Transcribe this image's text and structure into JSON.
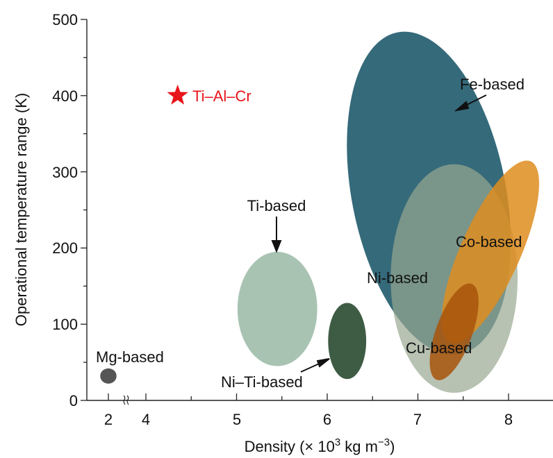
{
  "chart_data": {
    "type": "scatter",
    "xlabel": "Density (× 10",
    "xlabel_sup1": "3",
    "xlabel_mid": " kg m",
    "xlabel_sup2": "−3",
    "xlabel_end": ")",
    "ylabel": "Operational temperature range (K)",
    "xlim": [
      1.75,
      8.5
    ],
    "ylim": [
      0,
      500
    ],
    "x_axis_break": "between 2 and 4",
    "x_ticks": [
      "2",
      "4",
      "5",
      "6",
      "7",
      "8"
    ],
    "y_ticks": [
      "0",
      "100",
      "200",
      "300",
      "400",
      "500"
    ],
    "grid": false,
    "highlight_point": {
      "name": "Ti–Al–Cr",
      "x": 4.35,
      "y": 400,
      "marker": "star",
      "color": "#e8141b"
    },
    "regions": [
      {
        "name": "Fe-based",
        "label": "Fe-based",
        "cx": 7.12,
        "cy": 272,
        "rx_density": 0.85,
        "ry_temp": 215,
        "rotation_deg": -11,
        "color": "#1f5a6b",
        "opacity": 0.9
      },
      {
        "name": "Ni-based",
        "label": "Ni-based",
        "cx": 7.4,
        "cy": 160,
        "rx_density": 0.7,
        "ry_temp": 150,
        "rotation_deg": 0,
        "color": "#98a891",
        "opacity": 0.7
      },
      {
        "name": "Co-based",
        "label": "Co-based",
        "cx": 7.8,
        "cy": 195,
        "rx_density": 0.33,
        "ry_temp": 130,
        "rotation_deg": 24,
        "color": "#de8d1e",
        "opacity": 0.85
      },
      {
        "name": "Cu-based",
        "label": "Cu-based",
        "cx": 7.4,
        "cy": 90,
        "rx_density": 0.2,
        "ry_temp": 67,
        "rotation_deg": 20,
        "color": "#a8530a",
        "opacity": 0.85
      },
      {
        "name": "Ti-based",
        "label": "Ti-based",
        "cx": 5.45,
        "cy": 120,
        "rx_density": 0.44,
        "ry_temp": 75,
        "rotation_deg": 0,
        "color": "#a8c3b2",
        "opacity": 1
      },
      {
        "name": "Ni–Ti-based",
        "label": "Ni–Ti-based",
        "cx": 6.22,
        "cy": 78,
        "rx_density": 0.21,
        "ry_temp": 50,
        "rotation_deg": 0,
        "color": "#3e5c44",
        "opacity": 1
      },
      {
        "name": "Mg-based",
        "label": "Mg-based",
        "cx": 2.0,
        "cy": 32,
        "rx_density": 0.09,
        "ry_temp": 10,
        "rotation_deg": 0,
        "color": "#555555",
        "opacity": 1
      }
    ]
  }
}
